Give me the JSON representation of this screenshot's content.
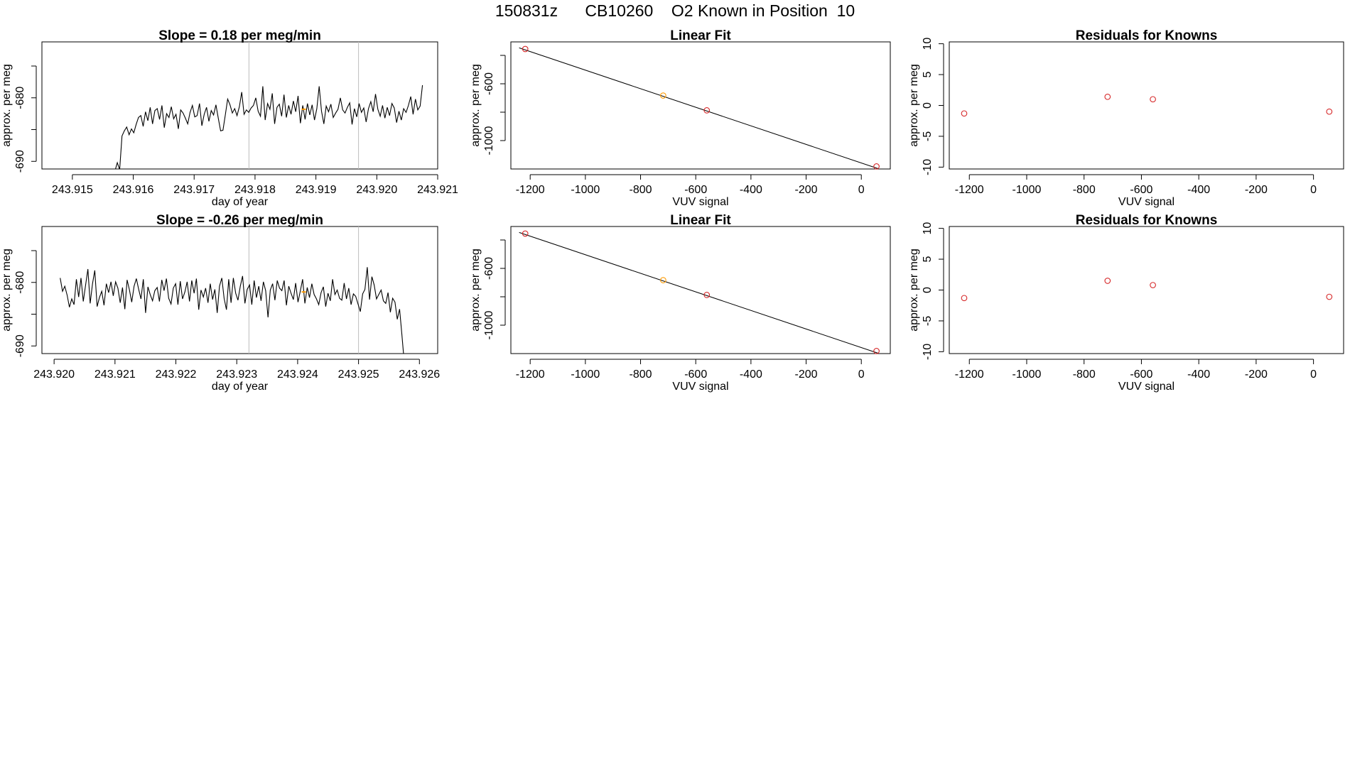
{
  "page": {
    "title": "150831z      CB10260    O2 Known in Position  10"
  },
  "colors": {
    "line": "#000000",
    "marker_red": "#d62728",
    "marker_orange": "#ff9a00",
    "vline": "#bdbdbd"
  },
  "chart_data": [
    {
      "id": "ts1",
      "type": "line",
      "title": "Slope =  0.18  per meg/min",
      "xlabel": "day of year",
      "ylabel": "approx. per meg",
      "xlim": [
        243.9145,
        243.921
      ],
      "ylim": [
        -691.2,
        -671.2
      ],
      "xticks": [
        243.915,
        243.916,
        243.917,
        243.918,
        243.919,
        243.92,
        243.921
      ],
      "xtick_labels": [
        "243.915",
        "243.916",
        "243.917",
        "243.918",
        "243.919",
        "243.920",
        "243.921"
      ],
      "yticks": [
        -690,
        -685,
        -680,
        -675
      ],
      "ytick_labels": [
        "-690",
        "",
        "-680",
        ""
      ],
      "vlines": [
        243.9179,
        243.9197
      ],
      "orange_marker": [
        243.9188,
        -681.8
      ],
      "series": [
        {
          "x_start": 243.9157,
          "x_end": 243.92075,
          "values": [
            -691.5,
            -690.2,
            -691.3,
            -686,
            -685.2,
            -684.6,
            -685.8,
            -684.9,
            -685.5,
            -684.2,
            -683.1,
            -682.8,
            -684.5,
            -682.2,
            -683.6,
            -681.5,
            -684.1,
            -682,
            -681.7,
            -683.4,
            -681.2,
            -684.7,
            -682.5,
            -683.1,
            -681.4,
            -683.3,
            -682.6,
            -684.9,
            -681.9,
            -682.4,
            -683.2,
            -684.1,
            -682.3,
            -681.2,
            -683,
            -682.8,
            -680.9,
            -684.4,
            -682.6,
            -681.5,
            -683.7,
            -682,
            -682.7,
            -681.1,
            -683.2,
            -685.2,
            -685.1,
            -682.7,
            -680.2,
            -681.1,
            -682.4,
            -681.7,
            -682.8,
            -681.4,
            -679.1,
            -682.6,
            -681.9,
            -682.3,
            -681.6,
            -681.2,
            -680,
            -682.1,
            -682.9,
            -678.2,
            -683.5,
            -680.9,
            -681.8,
            -679.3,
            -684.1,
            -681.5,
            -681,
            -682.9,
            -679.5,
            -683.1,
            -681.2,
            -682.6,
            -680.5,
            -682.2,
            -679.7,
            -684,
            -681.2,
            -683.4,
            -680.9,
            -682.7,
            -681.1,
            -683.5,
            -681.7,
            -678.2,
            -682.1,
            -684.1,
            -681.3,
            -682.2,
            -681,
            -683.1,
            -682.4,
            -681.8,
            -680,
            -681.9,
            -682.4,
            -681.5,
            -680.8,
            -684.2,
            -681.7,
            -683,
            -680.9,
            -682.3,
            -681.6,
            -683.8,
            -681.7,
            -680.6,
            -682.2,
            -679.4,
            -681.8,
            -682.9,
            -681.2,
            -683.2,
            -681.5,
            -682.8,
            -680.9,
            -681.6,
            -683.9,
            -682.1,
            -683.5,
            -681.7,
            -682.3,
            -681.2,
            -679.8,
            -682.6,
            -680.2,
            -681.9,
            -681.3,
            -678
          ]
        }
      ]
    },
    {
      "id": "fit1",
      "type": "scatter",
      "title": "Linear Fit",
      "xlabel": "VUV signal",
      "ylabel": "approx. per meg",
      "xlim": [
        -1270,
        105
      ],
      "ylim": [
        -1200,
        -305
      ],
      "xticks": [
        -1200,
        -1000,
        -800,
        -600,
        -400,
        -200,
        0
      ],
      "xtick_labels": [
        "-1200",
        "-1000",
        "-800",
        "-600",
        "-400",
        "-200",
        "0"
      ],
      "yticks": [
        -1000,
        -800,
        -600,
        -400
      ],
      "ytick_labels": [
        "-1000",
        "",
        "-600",
        ""
      ],
      "fit_line": [
        [
          -1240,
          -347
        ],
        [
          60,
          -1197
        ]
      ],
      "points": [
        [
          -1218,
          -355,
          "red"
        ],
        [
          -718,
          -683,
          "orange"
        ],
        [
          -560,
          -787,
          "red"
        ],
        [
          55,
          -1182,
          "red"
        ]
      ]
    },
    {
      "id": "res1",
      "type": "scatter",
      "title": "Residuals for Knowns",
      "xlabel": "VUV signal",
      "ylabel": "approx. per meg",
      "xlim": [
        -1270,
        105
      ],
      "ylim": [
        -10.3,
        10.3
      ],
      "xticks": [
        -1200,
        -1000,
        -800,
        -600,
        -400,
        -200,
        0
      ],
      "xtick_labels": [
        "-1200",
        "-1000",
        "-800",
        "-600",
        "-400",
        "-200",
        "0"
      ],
      "yticks": [
        -10,
        -5,
        0,
        5,
        10
      ],
      "ytick_labels": [
        "-10",
        "-5",
        "0",
        "5",
        "10"
      ],
      "points": [
        [
          -1218,
          -1.3,
          "red"
        ],
        [
          -718,
          1.4,
          "red"
        ],
        [
          -560,
          1.0,
          "red"
        ],
        [
          55,
          -1.0,
          "red"
        ]
      ]
    },
    {
      "id": "ts2",
      "type": "line",
      "title": "Slope =  -0.26  per meg/min",
      "xlabel": "day of year",
      "ylabel": "approx. per meg",
      "xlim": [
        243.9198,
        243.9263
      ],
      "ylim": [
        -691.2,
        -671.2
      ],
      "xticks": [
        243.92,
        243.921,
        243.922,
        243.923,
        243.924,
        243.925,
        243.926
      ],
      "xtick_labels": [
        "243.920",
        "243.921",
        "243.922",
        "243.923",
        "243.924",
        "243.925",
        "243.926"
      ],
      "yticks": [
        -690,
        -685,
        -680,
        -675
      ],
      "ytick_labels": [
        "-690",
        "",
        "-680",
        ""
      ],
      "vlines": [
        243.9232,
        243.925
      ],
      "orange_marker": [
        243.9241,
        -681.5
      ],
      "series": [
        {
          "x_start": 243.9201,
          "x_end": 243.92575,
          "values": [
            -679.3,
            -681.4,
            -680.6,
            -682,
            -683.9,
            -682.6,
            -683.5,
            -679.5,
            -682.3,
            -679.3,
            -683,
            -680.4,
            -677.9,
            -683.3,
            -680.2,
            -678.1,
            -683.8,
            -682.4,
            -681.4,
            -683.6,
            -680.2,
            -681.6,
            -679.9,
            -682.1,
            -679.9,
            -680.9,
            -683.2,
            -680.8,
            -684.2,
            -679.6,
            -681.2,
            -683.1,
            -680.6,
            -679.4,
            -681.1,
            -682.6,
            -679.5,
            -684.8,
            -680.7,
            -681.9,
            -682.9,
            -681.3,
            -680.8,
            -683,
            -679.6,
            -681.3,
            -679.4,
            -682.5,
            -683.4,
            -680.9,
            -680.2,
            -683.5,
            -679.8,
            -682.6,
            -681.5,
            -679.9,
            -683,
            -679.7,
            -681.7,
            -679.4,
            -684.3,
            -681.2,
            -682.3,
            -680.9,
            -683.2,
            -680.2,
            -682.7,
            -681.1,
            -684.8,
            -680.6,
            -679.3,
            -682.5,
            -684.3,
            -679.5,
            -683.2,
            -679.3,
            -681.7,
            -682.8,
            -680.6,
            -679,
            -683.3,
            -681.1,
            -680.4,
            -683.5,
            -679.7,
            -682.4,
            -680.6,
            -682.9,
            -679.9,
            -681.3,
            -685.5,
            -681.2,
            -680.2,
            -682.8,
            -679.7,
            -680.9,
            -681.3,
            -679.7,
            -683.6,
            -680.6,
            -681.7,
            -682.7,
            -680.1,
            -683.1,
            -681.4,
            -679.5,
            -683.3,
            -680.8,
            -682.4,
            -680.2,
            -681.9,
            -682.6,
            -683.5,
            -681.6,
            -680.7,
            -683.8,
            -681.7,
            -682.9,
            -679.5,
            -681.9,
            -681.2,
            -682.5,
            -682.8,
            -680.1,
            -682.6,
            -680.9,
            -683.5,
            -681.8,
            -682.2,
            -683.4,
            -684.6,
            -681.8,
            -681.1,
            -677.6,
            -682.7,
            -679.1,
            -680.4,
            -682.6,
            -681.9,
            -681.2,
            -682.9,
            -683.3,
            -681.6,
            -684.7,
            -682.5,
            -683.1,
            -685.8,
            -684.2,
            -688.2,
            -692.5
          ]
        }
      ]
    },
    {
      "id": "fit2",
      "type": "scatter",
      "title": "Linear Fit",
      "xlabel": "VUV signal",
      "ylabel": "approx. per meg",
      "xlim": [
        -1270,
        105
      ],
      "ylim": [
        -1200,
        -305
      ],
      "xticks": [
        -1200,
        -1000,
        -800,
        -600,
        -400,
        -200,
        0
      ],
      "xtick_labels": [
        "-1200",
        "-1000",
        "-800",
        "-600",
        "-400",
        "-200",
        "0"
      ],
      "yticks": [
        -1000,
        -800,
        -600,
        -400
      ],
      "ytick_labels": [
        "-1000",
        "",
        "-600",
        ""
      ],
      "fit_line": [
        [
          -1240,
          -347
        ],
        [
          60,
          -1197
        ]
      ],
      "points": [
        [
          -1218,
          -355,
          "red"
        ],
        [
          -718,
          -683,
          "orange"
        ],
        [
          -560,
          -787,
          "red"
        ],
        [
          55,
          -1182,
          "red"
        ]
      ]
    },
    {
      "id": "res2",
      "type": "scatter",
      "title": "Residuals for Knowns",
      "xlabel": "VUV signal",
      "ylabel": "approx. per meg",
      "xlim": [
        -1270,
        105
      ],
      "ylim": [
        -10.3,
        10.3
      ],
      "xticks": [
        -1200,
        -1000,
        -800,
        -600,
        -400,
        -200,
        0
      ],
      "xtick_labels": [
        "-1200",
        "-1000",
        "-800",
        "-600",
        "-400",
        "-200",
        "0"
      ],
      "yticks": [
        -10,
        -5,
        0,
        5,
        10
      ],
      "ytick_labels": [
        "-10",
        "-5",
        "0",
        "5",
        "10"
      ],
      "points": [
        [
          -1218,
          -1.3,
          "red"
        ],
        [
          -718,
          1.5,
          "red"
        ],
        [
          -560,
          0.8,
          "red"
        ],
        [
          55,
          -1.1,
          "red"
        ]
      ]
    }
  ]
}
